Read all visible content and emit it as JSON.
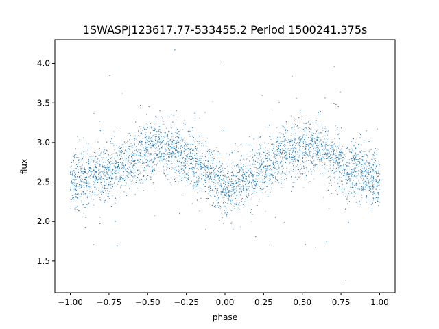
{
  "chart_data": {
    "type": "scatter",
    "title": "1SWASPJ123617.77-533455.2 Period 1500241.375s",
    "xlabel": "phase",
    "ylabel": "flux",
    "xlim": [
      -1.1,
      1.1
    ],
    "ylim": [
      1.1,
      4.3
    ],
    "xticks": [
      -1.0,
      -0.75,
      -0.5,
      -0.25,
      0.0,
      0.25,
      0.5,
      0.75,
      1.0
    ],
    "xtick_labels": [
      "−1.00",
      "−0.75",
      "−0.50",
      "−0.25",
      "0.00",
      "0.25",
      "0.50",
      "0.75",
      "1.00"
    ],
    "yticks": [
      1.5,
      2.0,
      2.5,
      3.0,
      3.5,
      4.0
    ],
    "ytick_labels": [
      "1.5",
      "2.0",
      "2.5",
      "3.0",
      "3.5",
      "4.0"
    ],
    "grid": false,
    "marker_color": "#1f77b4",
    "series": [
      {
        "points_estimated": true,
        "profile": {
          "phase": [
            -1.0,
            -0.9,
            -0.75,
            -0.6,
            -0.5,
            -0.4,
            -0.3,
            -0.2,
            -0.1,
            -0.05,
            0.0,
            0.05,
            0.1,
            0.2,
            0.3,
            0.4,
            0.5,
            0.6,
            0.7,
            0.8,
            0.9,
            1.0
          ],
          "flux": [
            2.5,
            2.55,
            2.62,
            2.8,
            2.9,
            2.95,
            2.85,
            2.75,
            2.6,
            2.5,
            2.45,
            2.4,
            2.5,
            2.6,
            2.75,
            2.85,
            2.95,
            2.95,
            2.8,
            2.65,
            2.6,
            2.5
          ]
        }
      }
    ]
  }
}
